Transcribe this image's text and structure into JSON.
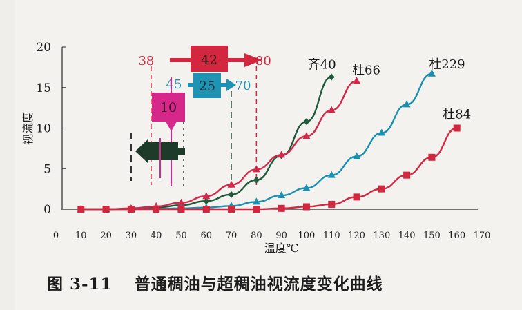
{
  "caption": {
    "figure_number": "图 3-11",
    "title": "普通稠油与超稠油视流度变化曲线"
  },
  "chart_data": {
    "type": "line",
    "title": "",
    "xlabel": "温度℃",
    "ylabel": "视流度",
    "xlim": [
      0,
      170
    ],
    "ylim": [
      0,
      20
    ],
    "xticks": [
      0,
      10,
      20,
      30,
      40,
      50,
      60,
      70,
      80,
      90,
      100,
      110,
      120,
      130,
      140,
      150,
      160,
      170
    ],
    "yticks": [
      0,
      5,
      10,
      15,
      20
    ],
    "grid": false,
    "series": [
      {
        "name": "齐40",
        "color": "#1f5a3a",
        "marker": "diamond",
        "x": [
          10,
          20,
          30,
          40,
          50,
          60,
          70,
          80,
          90,
          100,
          110
        ],
        "y": [
          0.0,
          0.0,
          0.05,
          0.2,
          0.5,
          1.0,
          1.8,
          3.6,
          6.6,
          10.8,
          16.3
        ]
      },
      {
        "name": "杜66",
        "color": "#d4284b",
        "marker": "triangle",
        "x": [
          10,
          20,
          30,
          40,
          50,
          60,
          70,
          80,
          90,
          100,
          110,
          120
        ],
        "y": [
          0.0,
          0.0,
          0.1,
          0.35,
          0.8,
          1.6,
          3.0,
          4.9,
          6.7,
          9.0,
          12.2,
          15.8
        ]
      },
      {
        "name": "杜229",
        "color": "#1a8fb0",
        "marker": "triangle",
        "x": [
          10,
          20,
          30,
          40,
          50,
          60,
          70,
          80,
          90,
          100,
          110,
          120,
          130,
          140,
          150
        ],
        "y": [
          0.0,
          0.0,
          0.0,
          0.05,
          0.1,
          0.2,
          0.4,
          0.9,
          1.7,
          2.6,
          4.2,
          6.5,
          9.4,
          12.9,
          16.7
        ]
      },
      {
        "name": "杜84",
        "color": "#d1273f",
        "marker": "square",
        "x": [
          10,
          20,
          30,
          40,
          50,
          60,
          70,
          80,
          90,
          100,
          110,
          120,
          130,
          140,
          150,
          160
        ],
        "y": [
          0.0,
          0.0,
          0.0,
          0.0,
          0.0,
          0.0,
          0.0,
          0.0,
          0.1,
          0.3,
          0.6,
          1.5,
          2.5,
          4.2,
          6.4,
          10.0
        ]
      }
    ],
    "annotations": [
      {
        "kind": "range-arrow",
        "from": 38,
        "to": 80,
        "label": "42",
        "from_label": "38",
        "to_label": "80",
        "color": "#d3263f"
      },
      {
        "kind": "range-arrow",
        "from": 45,
        "to": 70,
        "label": "25",
        "from_label": "45",
        "to_label": "70",
        "color": "#1f93b3"
      },
      {
        "kind": "box-arrow-down",
        "at": 45,
        "label": "10",
        "color": "#d6288a"
      },
      {
        "kind": "box-arrow-left",
        "at": 45,
        "label": "",
        "color": "#1e3b2a"
      }
    ]
  }
}
